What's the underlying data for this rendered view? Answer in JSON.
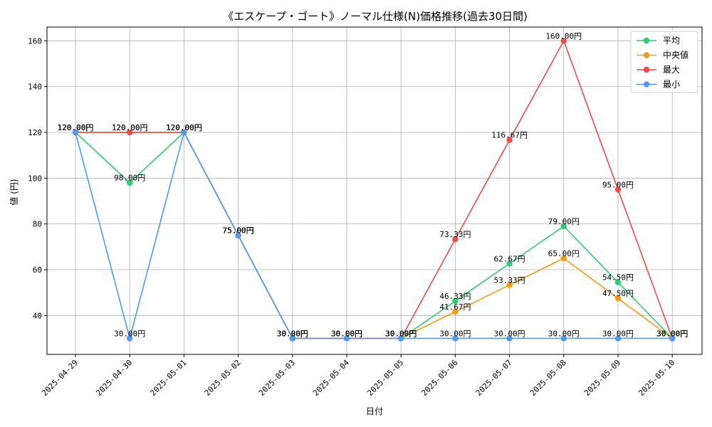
{
  "chart_data": {
    "type": "line",
    "title": "《エスケープ・ゴート》ノーマル仕様(N)価格推移(過去30日間)",
    "xlabel": "日付",
    "ylabel": "値 (円)",
    "ylim": [
      23,
      166
    ],
    "yticks": [
      40,
      60,
      80,
      100,
      120,
      140,
      160
    ],
    "grid": true,
    "legend_position": "top-right",
    "unit_suffix": "円",
    "categories": [
      "2025-04-29",
      "2025-04-30",
      "2025-05-01",
      "2025-05-02",
      "2025-05-03",
      "2025-05-04",
      "2025-05-05",
      "2025-05-06",
      "2025-05-07",
      "2025-05-08",
      "2025-05-09",
      "2025-05-10"
    ],
    "series": [
      {
        "name": "平均",
        "color": "#2ecc71",
        "values": [
          120,
          98,
          120,
          75,
          30,
          30,
          30,
          46.33,
          62.67,
          79,
          54.5,
          30
        ],
        "labels": [
          "120.00円",
          "98.00円",
          "120.00円",
          "75.00円",
          "30.00円",
          "30.00円",
          "30.00円",
          "46.33円",
          "62.67円",
          "79.00円",
          "54.50円",
          "30.00円"
        ]
      },
      {
        "name": "中央値",
        "color": "#f39c12",
        "values": [
          120,
          120,
          120,
          75,
          30,
          30,
          30,
          41.67,
          53.33,
          65,
          47.5,
          30
        ],
        "labels": [
          "120.00円",
          "120.00円",
          "120.00円",
          "75.00円",
          "30.00円",
          "30.00円",
          "30.00円",
          "41.67円",
          "53.33円",
          "65.00円",
          "47.50円",
          "30.00円"
        ]
      },
      {
        "name": "最大",
        "color": "#ef4b4b",
        "values": [
          120,
          120,
          120,
          75,
          30,
          30,
          30,
          73.33,
          116.67,
          160,
          95,
          30
        ],
        "labels": [
          "120.00円",
          "120.00円",
          "120.00円",
          "75.00円",
          "30.00円",
          "30.00円",
          "30.00円",
          "73.33円",
          "116.67円",
          "160.00円",
          "95.00円",
          "30.00円"
        ]
      },
      {
        "name": "最小",
        "color": "#4f9bf0",
        "values": [
          120,
          30,
          120,
          75,
          30,
          30,
          30,
          30,
          30,
          30,
          30,
          30
        ],
        "labels": [
          "120.00円",
          "30.00円",
          "120.00円",
          "75.00円",
          "30.00円",
          "30.00円",
          "30.00円",
          "30.00円",
          "30.00円",
          "30.00円",
          "30.00円",
          "30.00円"
        ]
      }
    ]
  }
}
